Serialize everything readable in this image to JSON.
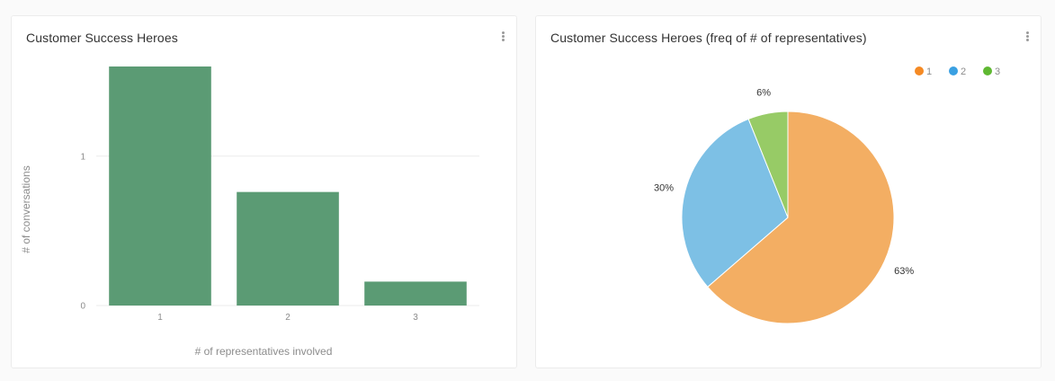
{
  "cards": {
    "bar": {
      "title": "Customer Success Heroes"
    },
    "pie": {
      "title": "Customer Success Heroes (freq of # of representatives)"
    }
  },
  "colors": {
    "bar": "#5b9b74",
    "pie": [
      "#f3ae63",
      "#7dc0e5",
      "#97cb66"
    ],
    "legend": [
      "#f58a24",
      "#3aa0e2",
      "#5fb832"
    ]
  },
  "chart_data": [
    {
      "type": "bar",
      "title": "Customer Success Heroes",
      "categories": [
        "1",
        "2",
        "3"
      ],
      "values": [
        1.6,
        0.76,
        0.16
      ],
      "xlabel": "# of representatives involved",
      "ylabel": "# of conversations",
      "ylim": [
        0,
        1.6
      ],
      "yticks": [
        0,
        1
      ],
      "ytick_labels": [
        "0",
        "1"
      ],
      "grid": true
    },
    {
      "type": "pie",
      "title": "Customer Success Heroes (freq of # of representatives)",
      "categories": [
        "1",
        "2",
        "3"
      ],
      "values": [
        63,
        30,
        6
      ],
      "labels": [
        "63%",
        "30%",
        "6%"
      ],
      "legend": "top-right"
    }
  ]
}
